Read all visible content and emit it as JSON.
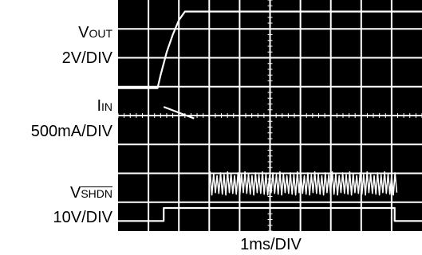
{
  "labels": {
    "vout_main": "V",
    "vout_sub": "OUT",
    "vout_scale": "2V/DIV",
    "iin_main": "I",
    "iin_sub": "IN",
    "iin_scale": "500mA/DIV",
    "vshdn_main": "V",
    "vshdn_sub": "SHDN",
    "vshdn_scale": "10V/DIV",
    "time_scale": "1ms/DIV"
  },
  "chart_data": {
    "type": "line",
    "title": "",
    "xlabel": "1ms/DIV",
    "grid": true,
    "divisions": {
      "x": 10,
      "y": 8
    },
    "colors": {
      "background": "#000000",
      "trace": "#ffffff",
      "grid": "#ffffff"
    },
    "series": [
      {
        "name": "VOUT",
        "x": [
          0.0,
          1.3,
          1.4,
          1.6,
          1.8,
          2.0,
          2.2,
          10.0
        ],
        "y": [
          4.95,
          4.95,
          5.4,
          6.2,
          6.8,
          7.3,
          7.6,
          7.6
        ]
      },
      {
        "name": "IIN",
        "x": [
          1.5,
          2.5
        ],
        "y": [
          4.3,
          3.9
        ]
      },
      {
        "name": "IIN switching",
        "x": [
          3.0,
          9.2
        ],
        "y_min": 1.25,
        "y_max": 2.05
      },
      {
        "name": "VSHDN",
        "x": [
          0.0,
          1.5,
          1.5,
          9.1,
          9.1,
          10.0
        ],
        "y": [
          0.35,
          0.35,
          0.8,
          0.8,
          0.35,
          0.35
        ]
      }
    ]
  }
}
